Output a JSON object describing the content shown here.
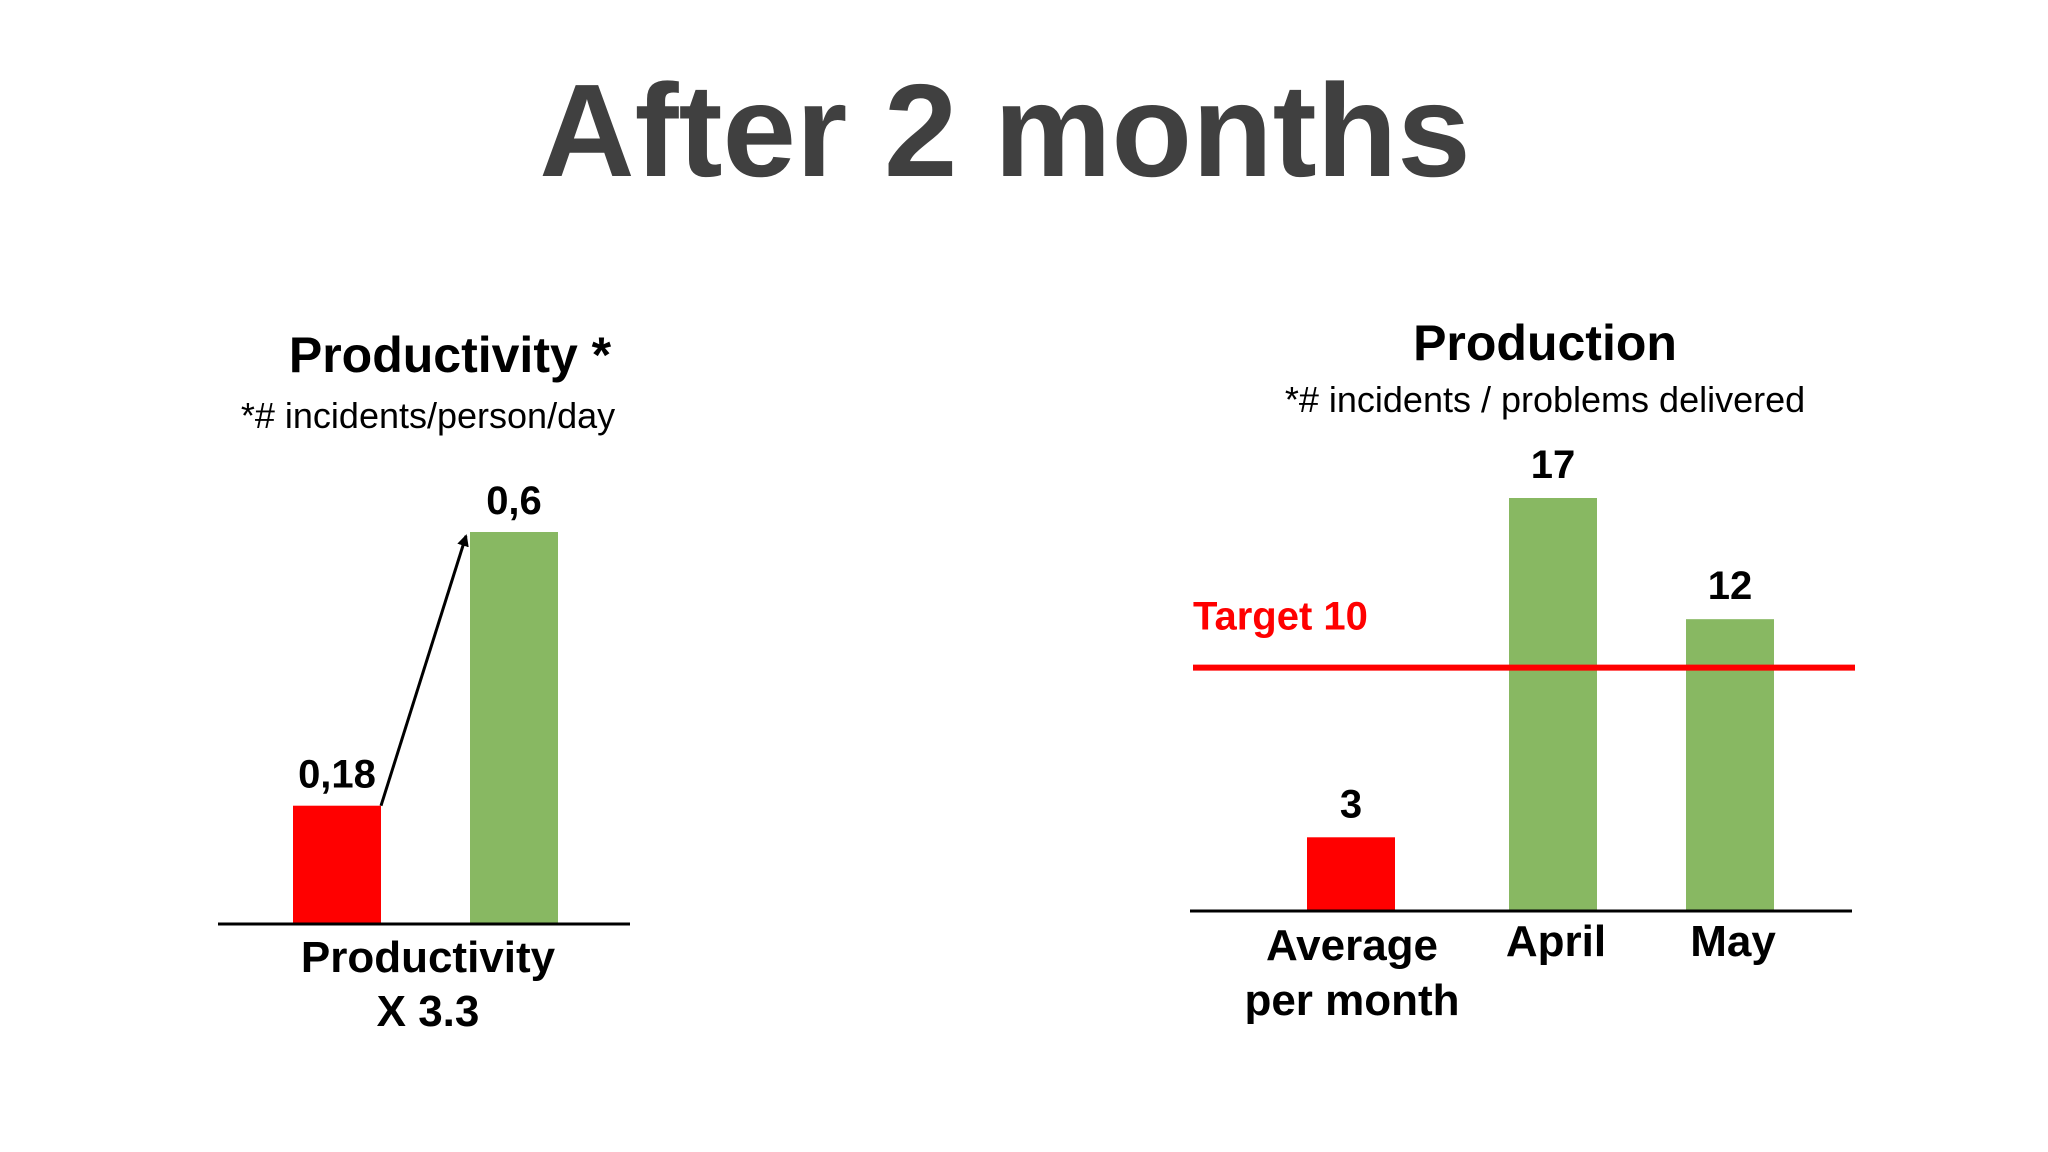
{
  "slide": {
    "title": "After 2 months"
  },
  "chart_data": [
    {
      "type": "bar",
      "title": "Productivity *",
      "subtitle": "*# incidents/person/day",
      "categories": [
        "",
        ""
      ],
      "values": [
        0.18,
        0.6
      ],
      "value_labels": [
        "0,18",
        "0,6"
      ],
      "bar_colors": [
        "#ff0000",
        "#88b862"
      ],
      "ylim": [
        0,
        0.6
      ],
      "grid": false,
      "annotation": {
        "type": "arrow",
        "from_bar": 0,
        "to_bar": 1,
        "caption_lines": [
          "Productivity",
          "X 3.3"
        ]
      }
    },
    {
      "type": "bar",
      "title": "Production",
      "subtitle": "*# incidents / problems delivered",
      "categories": [
        [
          "Average",
          "per month"
        ],
        [
          "April"
        ],
        [
          "May"
        ]
      ],
      "values": [
        3,
        17,
        12
      ],
      "value_labels": [
        "3",
        "17",
        "12"
      ],
      "bar_colors": [
        "#ff0000",
        "#88b862",
        "#88b862"
      ],
      "ylim": [
        0,
        17
      ],
      "grid": false,
      "reference_line": {
        "value": 10,
        "label": "Target 10",
        "color": "#ff0000"
      }
    }
  ]
}
